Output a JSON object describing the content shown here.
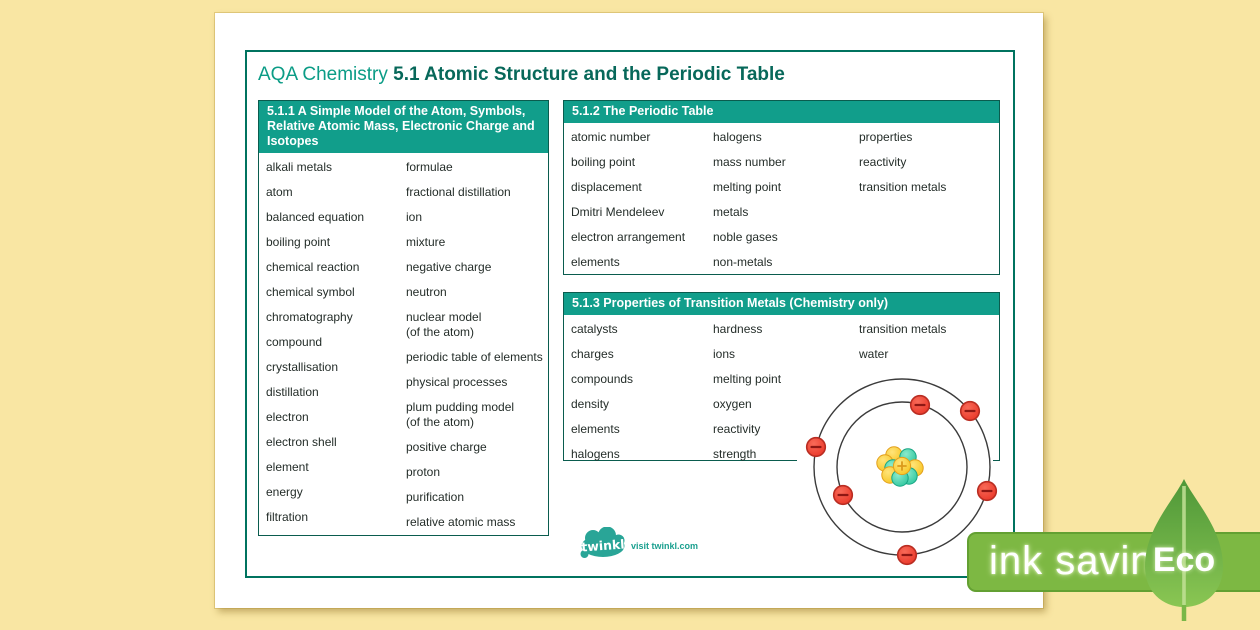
{
  "title": {
    "prefix": "AQA Chemistry",
    "main": "5.1 Atomic Structure and the Periodic Table"
  },
  "sections": {
    "s511": {
      "header": "5.1.1 A Simple Model of the Atom, Symbols, Relative Atomic Mass, Electronic Charge and Isotopes",
      "col1": [
        "alkali metals",
        "atom",
        "balanced equation",
        "boiling point",
        "chemical reaction",
        "chemical symbol",
        "chromatography",
        "compound",
        "crystallisation",
        "distillation",
        "electron",
        "electron shell",
        "element",
        "energy",
        "filtration"
      ],
      "col2": [
        "formulae",
        "fractional distillation",
        "ion",
        "mixture",
        "negative charge",
        "neutron",
        "nuclear model\n(of the atom)",
        "periodic table of elements",
        "physical processes",
        "plum pudding model\n(of the atom)",
        "positive charge",
        "proton",
        "purification",
        "relative atomic mass"
      ]
    },
    "s512": {
      "header": "5.1.2 The Periodic Table",
      "col1": [
        "atomic number",
        "boiling point",
        "displacement",
        "Dmitri Mendeleev",
        "electron arrangement",
        "elements"
      ],
      "col2": [
        "halogens",
        "mass number",
        "melting point",
        "metals",
        "noble gases",
        "non-metals"
      ],
      "col3": [
        "properties",
        "reactivity",
        "transition metals"
      ]
    },
    "s513": {
      "header": "5.1.3 Properties of Transition Metals (Chemistry only)",
      "col1": [
        "catalysts",
        "charges",
        "compounds",
        "density",
        "elements",
        "halogens"
      ],
      "col2": [
        "hardness",
        "ions",
        "melting point",
        "oxygen",
        "reactivity",
        "strength"
      ],
      "col3": [
        "transition metals",
        "water"
      ]
    }
  },
  "atom_diagram": {
    "description": "Bohr model atom with nucleus of protons and neutrons, 2 inner-shell electrons and 4 outer-shell electrons",
    "inner_electrons": 2,
    "outer_electrons": 4,
    "electron_symbol": "−",
    "proton_symbol": "+"
  },
  "footer": {
    "logo_text": "twinkl",
    "visit_text": "visit twinkl.com"
  },
  "badge": {
    "ink_saving": "ink saving",
    "eco": "Eco"
  },
  "colors": {
    "background_yellow": "#F9E6A3",
    "frame_teal": "#00735F",
    "header_teal": "#119E8B",
    "box_border": "#0A5C4E",
    "title_teal": "#0B9C86",
    "title_dark_teal": "#07685A",
    "body_text": "#242D29",
    "electron_red": "#EF4136",
    "proton_yellow": "#F7C522",
    "neutron_teal": "#2FC7A0",
    "banner_green": "#7DB843",
    "leaf_green_dark": "#4E9738",
    "leaf_green_light": "#8AC653",
    "twinkl_teal": "#29A597"
  }
}
